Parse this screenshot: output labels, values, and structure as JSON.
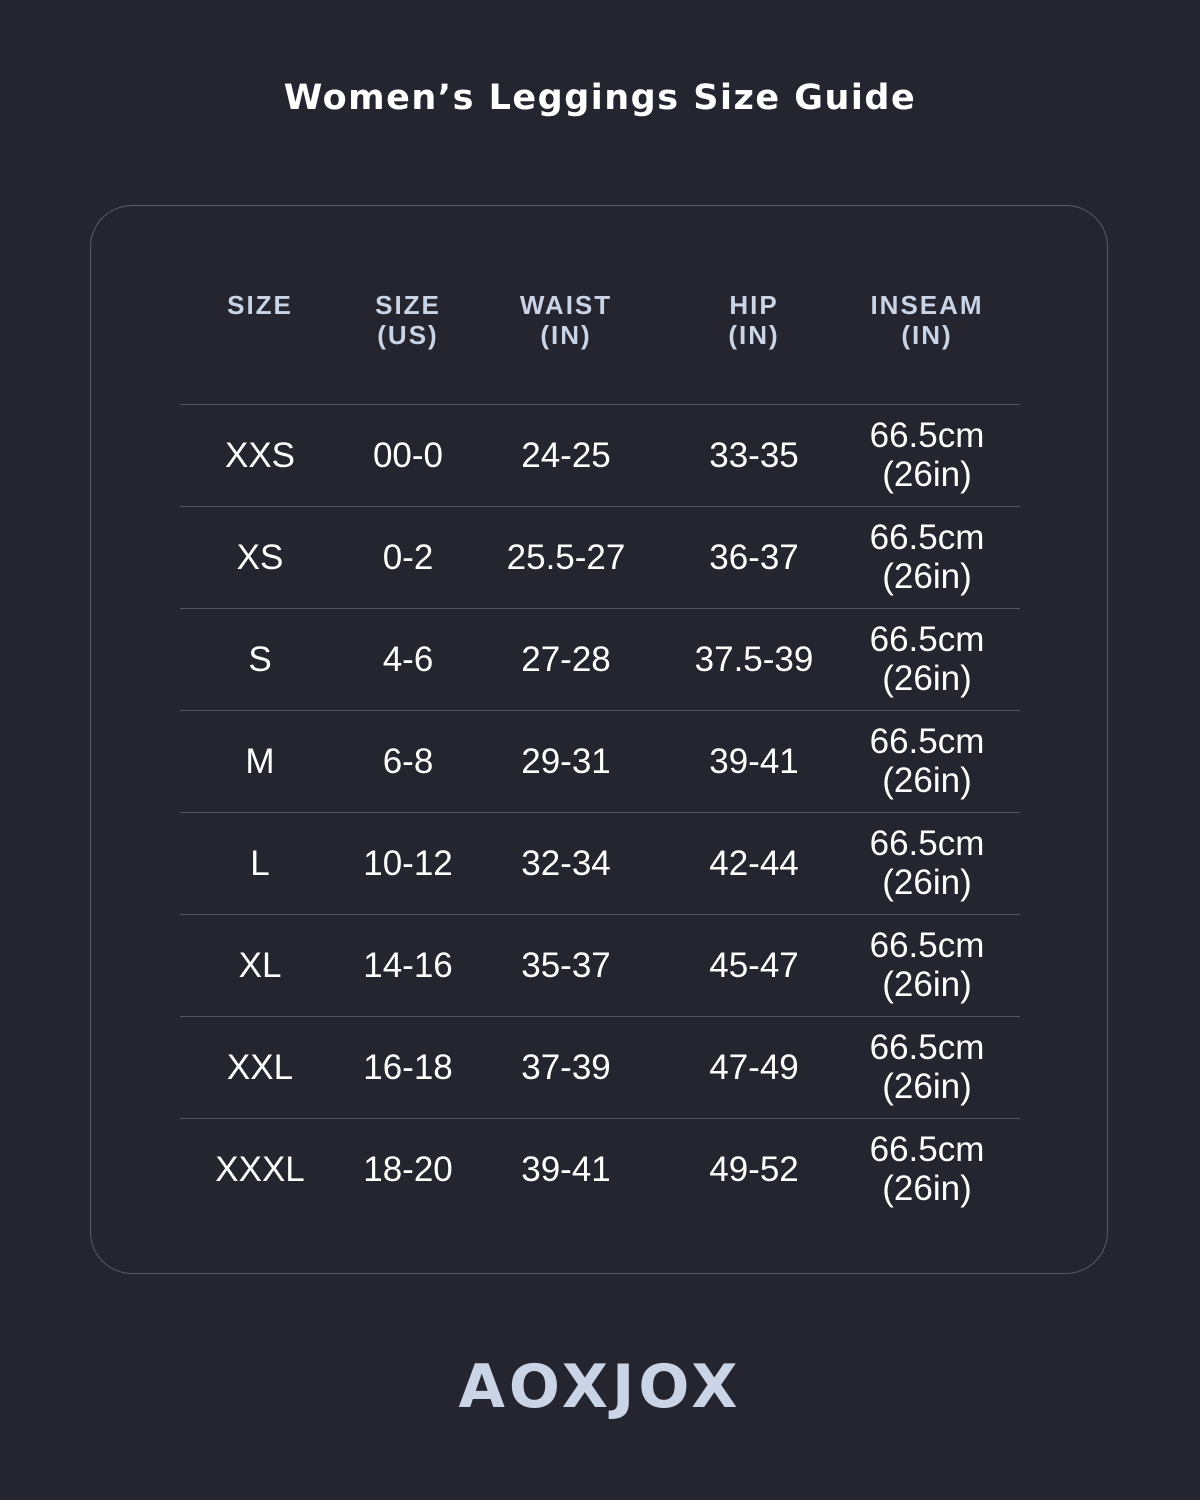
{
  "title": "Women’s Leggings Size Guide",
  "table": {
    "headers": [
      "SIZE",
      "SIZE\n(US)",
      "WAIST\n(IN)",
      "HIP\n(IN)",
      "INSEAM\n(IN)"
    ],
    "rows": [
      [
        "XXS",
        "00-0",
        "24-25",
        "33-35",
        "66.5cm\n(26in)"
      ],
      [
        "XS",
        "0-2",
        "25.5-27",
        "36-37",
        "66.5cm\n(26in)"
      ],
      [
        "S",
        "4-6",
        "27-28",
        "37.5-39",
        "66.5cm\n(26in)"
      ],
      [
        "M",
        "6-8",
        "29-31",
        "39-41",
        "66.5cm\n(26in)"
      ],
      [
        "L",
        "10-12",
        "32-34",
        "42-44",
        "66.5cm\n(26in)"
      ],
      [
        "XL",
        "14-16",
        "35-37",
        "45-47",
        "66.5cm\n(26in)"
      ],
      [
        "XXL",
        "16-18",
        "37-39",
        "47-49",
        "66.5cm\n(26in)"
      ],
      [
        "XXXL",
        "18-20",
        "39-41",
        "49-52",
        "66.5cm\n(26in)"
      ]
    ]
  },
  "brand": "AOXJOX",
  "colors": {
    "background": "#24252e",
    "header_text": "#c9d4e6",
    "body_text": "#ffffff",
    "divider": "#55565c"
  }
}
